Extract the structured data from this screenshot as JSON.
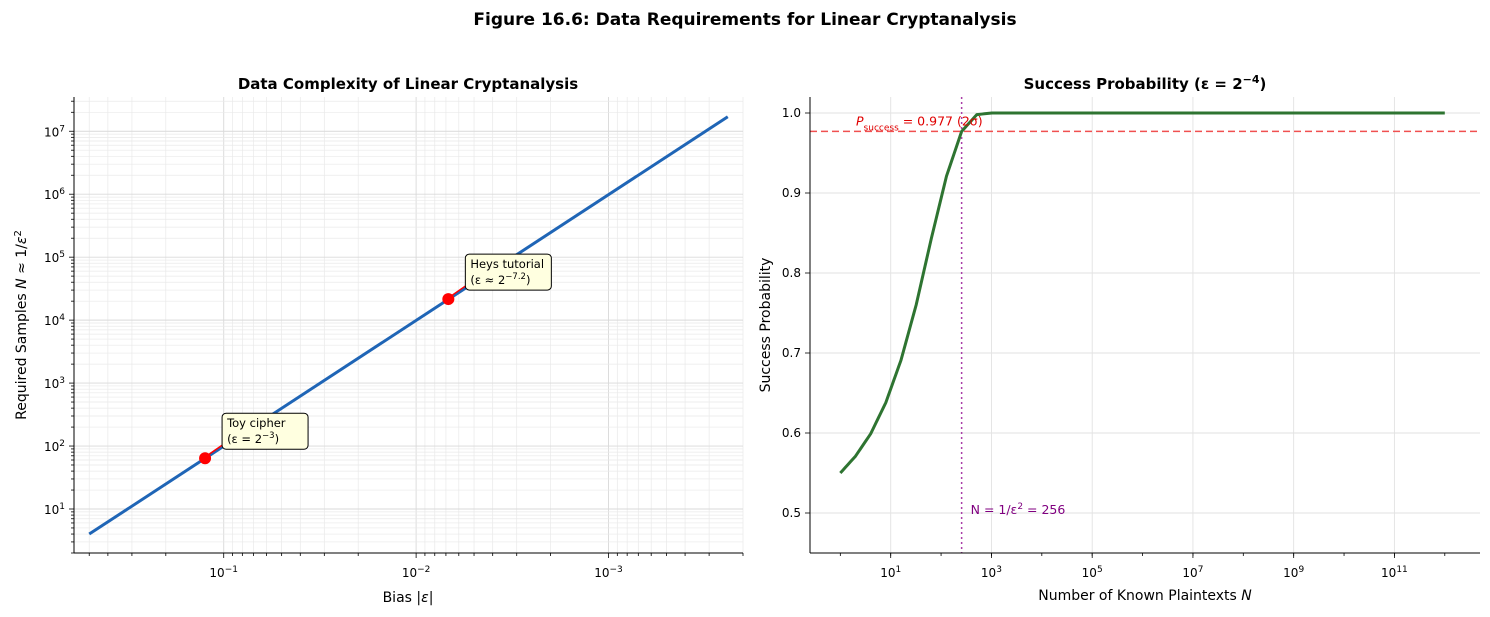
{
  "figure_title": "Figure 16.6: Data Requirements for Linear Cryptanalysis",
  "chart_data": [
    {
      "type": "line",
      "title": "Data Complexity of Linear Cryptanalysis",
      "xlabel": "Bias |ε|",
      "ylabel": "Required Samples N ≈ 1/ε²",
      "xscale": "log",
      "yscale": "log",
      "x_inverted": true,
      "xlim": [
        0.6,
        0.0002
      ],
      "ylim": [
        2,
        35000000
      ],
      "x_ticks": [
        {
          "value": 0.1,
          "base": "10",
          "exp": "−1"
        },
        {
          "value": 0.01,
          "base": "10",
          "exp": "−2"
        },
        {
          "value": 0.001,
          "base": "10",
          "exp": "−3"
        }
      ],
      "y_ticks": [
        {
          "value": 10,
          "base": "10",
          "exp": "1"
        },
        {
          "value": 100,
          "base": "10",
          "exp": "2"
        },
        {
          "value": 1000,
          "base": "10",
          "exp": "3"
        },
        {
          "value": 10000,
          "base": "10",
          "exp": "4"
        },
        {
          "value": 100000,
          "base": "10",
          "exp": "5"
        },
        {
          "value": 1000000,
          "base": "10",
          "exp": "6"
        },
        {
          "value": 10000000,
          "base": "10",
          "exp": "7"
        }
      ],
      "grid": true,
      "series": [
        {
          "x": [
            0.5,
            0.00024
          ],
          "y": [
            4,
            17000000
          ],
          "color": "#1f65b6"
        }
      ],
      "points": [
        {
          "x": 0.125,
          "y": 64,
          "color": "#ff0000",
          "annotation": {
            "line1": "Toy cipher",
            "line2_prefix": "(ε = 2",
            "line2_exp": "−3",
            "line2_suffix": ")"
          }
        },
        {
          "x": 0.0068,
          "y": 21600,
          "color": "#ff0000",
          "annotation": {
            "line1": "Heys tutorial",
            "line2_prefix": "(ε ≈ 2",
            "line2_exp": "−7.2",
            "line2_suffix": ")"
          }
        }
      ]
    },
    {
      "type": "line",
      "title_prefix": "Success Probability (ε = 2",
      "title_exp": "−4",
      "title_suffix": ")",
      "xlabel_prefix": "Number of Known Plaintexts ",
      "xlabel_var": "N",
      "ylabel": "Success Probability",
      "xscale": "log",
      "yscale": "linear",
      "xlim": [
        0.25,
        5000000000000
      ],
      "ylim": [
        0.45,
        1.02
      ],
      "x_ticks": [
        {
          "value": 10,
          "base": "10",
          "exp": "1"
        },
        {
          "value": 1000,
          "base": "10",
          "exp": "3"
        },
        {
          "value": 100000,
          "base": "10",
          "exp": "5"
        },
        {
          "value": 10000000,
          "base": "10",
          "exp": "7"
        },
        {
          "value": 1000000000,
          "base": "10",
          "exp": "9"
        },
        {
          "value": 100000000000,
          "base": "10",
          "exp": "11"
        }
      ],
      "y_ticks": [
        "0.5",
        "0.6",
        "0.7",
        "0.8",
        "0.9",
        "1.0"
      ],
      "grid": true,
      "series": [
        {
          "color": "#2e7431",
          "x": [
            1,
            2,
            4,
            8,
            16,
            32,
            64,
            128,
            256,
            512,
            1024,
            100000,
            1000000000,
            1000000000000
          ],
          "y": [
            0.55,
            0.571,
            0.599,
            0.638,
            0.691,
            0.76,
            0.843,
            0.921,
            0.977,
            0.998,
            1.0,
            1.0,
            1.0,
            1.0
          ]
        }
      ],
      "hline": {
        "y": 0.977,
        "color": "#f05050",
        "label_prefix": "P",
        "label_sub": "success",
        "label_suffix": " = 0.977 (2σ)"
      },
      "vline": {
        "x": 256,
        "color": "#aa3fa8",
        "label_prefix": "N = 1/ε",
        "label_exp": "2",
        "label_suffix": " = 256"
      }
    }
  ]
}
